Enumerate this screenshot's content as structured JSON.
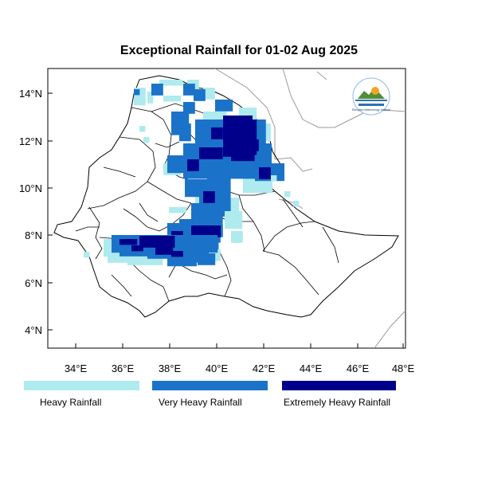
{
  "title": "Exceptional Rainfall for 01-02 Aug 2025",
  "axes": {
    "x_ticks": [
      "34°E",
      "36°E",
      "38°E",
      "40°E",
      "42°E",
      "44°E",
      "46°E",
      "48°E"
    ],
    "y_ticks": [
      "14°N",
      "12°N",
      "10°N",
      "8°N",
      "6°N",
      "4°N"
    ]
  },
  "legend": [
    {
      "label": "Heavy Rainfall",
      "color": "#aeeaee"
    },
    {
      "label": "Very Heavy Rainfall",
      "color": "#1a73c9"
    },
    {
      "label": "Extremely Heavy Rainfall",
      "color": "#00008b"
    }
  ],
  "logo": {
    "text": "Ethiopian Meteorology Institute"
  },
  "colors": {
    "frame": "#000000",
    "boundary": "#000000",
    "neighbor_boundary": "#9a9a9a"
  }
}
